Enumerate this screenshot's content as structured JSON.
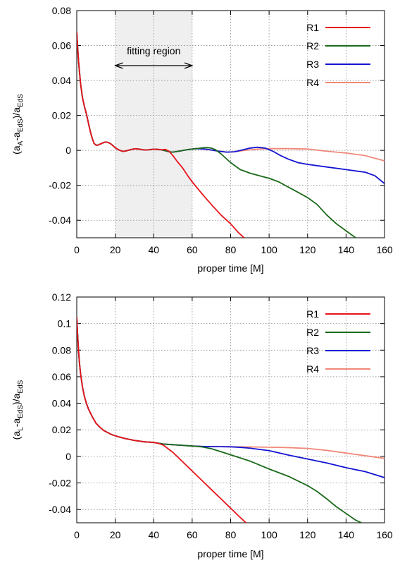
{
  "colors": {
    "R1": "#e8141b",
    "R2": "#1b6a1b",
    "R3": "#1414d2",
    "R4": "#f08878",
    "fitting_region": "#efefef",
    "grid": "#888888"
  },
  "chart_data": [
    {
      "type": "line",
      "xlabel": "proper time [M]",
      "ylabel": {
        "main": "(a",
        "sub1": "A",
        "mid": "-a",
        "sub2": "EdS",
        "close": ")/a",
        "sub3": "EdS"
      },
      "xlim": [
        0,
        160
      ],
      "ylim": [
        -0.05,
        0.08
      ],
      "xticks": [
        0,
        20,
        40,
        60,
        80,
        100,
        120,
        140,
        160
      ],
      "xtick_labels": [
        "0",
        "20",
        "40",
        "60",
        "80",
        "100",
        "120",
        "140",
        "160"
      ],
      "yticks": [
        -0.04,
        -0.02,
        0,
        0.02,
        0.04,
        0.06,
        0.08
      ],
      "ytick_labels": [
        "-0.04",
        "-0.02",
        "0",
        "0.02",
        "0.04",
        "0.06",
        "0.08"
      ],
      "grid": true,
      "legend_position": "top-right",
      "annotation": {
        "label": "fitting region",
        "x_range": [
          20,
          60
        ],
        "arrow_y": 0.0485,
        "label_y": 0.057
      },
      "series": [
        {
          "name": "R1",
          "x": [
            0,
            0.5,
            1,
            2,
            3,
            4,
            5,
            6,
            7,
            8,
            9,
            10,
            11,
            12,
            13,
            14,
            15,
            16,
            17,
            18,
            19,
            20,
            22,
            24,
            26,
            28,
            30,
            32,
            34,
            36,
            38,
            40,
            42,
            44,
            46,
            48,
            50,
            52,
            55,
            58,
            60,
            63,
            66,
            70,
            75,
            80,
            84,
            87
          ],
          "y": [
            0.068,
            0.058,
            0.05,
            0.038,
            0.03,
            0.025,
            0.021,
            0.016,
            0.011,
            0.007,
            0.004,
            0.003,
            0.003,
            0.0035,
            0.004,
            0.0045,
            0.0048,
            0.0046,
            0.0042,
            0.0035,
            0.0025,
            0.0015,
            0.0002,
            -0.0006,
            -0.0002,
            0.0004,
            0.0009,
            0.0008,
            0.0004,
            0.0002,
            0.0004,
            0.0007,
            0.0006,
            0.0003,
            0.0006,
            -0.0005,
            -0.003,
            -0.006,
            -0.01,
            -0.015,
            -0.018,
            -0.022,
            -0.026,
            -0.031,
            -0.037,
            -0.042,
            -0.047,
            -0.05
          ]
        },
        {
          "name": "R2",
          "x": [
            0,
            0.5,
            1,
            2,
            3,
            4,
            5,
            6,
            7,
            8,
            9,
            10,
            11,
            12,
            13,
            14,
            15,
            16,
            17,
            18,
            19,
            20,
            22,
            24,
            26,
            28,
            30,
            32,
            34,
            36,
            38,
            40,
            42,
            44,
            46,
            48,
            50,
            54,
            58,
            62,
            66,
            68,
            70,
            72,
            75,
            80,
            85,
            90,
            95,
            100,
            105,
            110,
            115,
            120,
            125,
            130,
            135,
            140,
            145
          ],
          "y": [
            0.068,
            0.058,
            0.05,
            0.038,
            0.03,
            0.025,
            0.021,
            0.016,
            0.011,
            0.007,
            0.004,
            0.003,
            0.003,
            0.0035,
            0.004,
            0.0045,
            0.0048,
            0.0046,
            0.0042,
            0.0035,
            0.0025,
            0.0015,
            0.0002,
            -0.0006,
            -0.0002,
            0.0004,
            0.0009,
            0.0008,
            0.0004,
            0.0002,
            0.0004,
            0.0007,
            0.0006,
            0.0003,
            -0.0002,
            -0.0008,
            -0.001,
            -0.0003,
            0.0005,
            0.001,
            0.0015,
            0.0016,
            0.0013,
            0.0005,
            -0.002,
            -0.007,
            -0.011,
            -0.013,
            -0.0145,
            -0.016,
            -0.018,
            -0.021,
            -0.024,
            -0.027,
            -0.031,
            -0.037,
            -0.042,
            -0.046,
            -0.05
          ]
        },
        {
          "name": "R3",
          "x": [
            0,
            0.5,
            1,
            2,
            3,
            4,
            5,
            6,
            7,
            8,
            9,
            10,
            11,
            12,
            13,
            14,
            15,
            16,
            17,
            18,
            19,
            20,
            22,
            24,
            26,
            28,
            30,
            32,
            34,
            36,
            38,
            40,
            42,
            44,
            46,
            48,
            50,
            54,
            58,
            62,
            66,
            70,
            74,
            78,
            82,
            86,
            90,
            94,
            98,
            102,
            106,
            110,
            115,
            120,
            130,
            140,
            150,
            155,
            160
          ],
          "y": [
            0.068,
            0.058,
            0.05,
            0.038,
            0.03,
            0.025,
            0.021,
            0.016,
            0.011,
            0.007,
            0.004,
            0.003,
            0.003,
            0.0035,
            0.004,
            0.0045,
            0.0048,
            0.0046,
            0.0042,
            0.0035,
            0.0025,
            0.0015,
            0.0002,
            -0.0006,
            -0.0002,
            0.0004,
            0.0009,
            0.0008,
            0.0004,
            0.0002,
            0.0004,
            0.0007,
            0.0006,
            0.0003,
            -0.0002,
            -0.0008,
            -0.001,
            -0.0003,
            0.0005,
            0.001,
            0.0008,
            0.0002,
            -0.0005,
            -0.001,
            -0.0008,
            0.0002,
            0.0013,
            0.0018,
            0.0013,
            -0.0005,
            -0.003,
            -0.005,
            -0.007,
            -0.008,
            -0.0095,
            -0.011,
            -0.0125,
            -0.0145,
            -0.019
          ]
        },
        {
          "name": "R4",
          "x": [
            0,
            0.5,
            1,
            2,
            3,
            4,
            5,
            6,
            7,
            8,
            9,
            10,
            11,
            12,
            13,
            14,
            15,
            16,
            17,
            18,
            19,
            20,
            22,
            24,
            26,
            28,
            30,
            32,
            34,
            36,
            38,
            40,
            42,
            44,
            46,
            48,
            50,
            54,
            58,
            62,
            66,
            70,
            74,
            78,
            82,
            86,
            90,
            95,
            100,
            110,
            120,
            130,
            140,
            150,
            160
          ],
          "y": [
            0.068,
            0.058,
            0.05,
            0.038,
            0.03,
            0.025,
            0.021,
            0.016,
            0.011,
            0.007,
            0.004,
            0.003,
            0.003,
            0.0035,
            0.004,
            0.0045,
            0.0048,
            0.0046,
            0.0042,
            0.0035,
            0.0025,
            0.0015,
            0.0002,
            -0.0006,
            -0.0002,
            0.0004,
            0.0009,
            0.0008,
            0.0004,
            0.0002,
            0.0004,
            0.0007,
            0.0006,
            0.0003,
            -0.0002,
            -0.0008,
            -0.001,
            -0.0003,
            0.0005,
            0.001,
            0.0008,
            0.0002,
            -0.0005,
            -0.001,
            -0.0008,
            -0.0002,
            0.0003,
            0.0008,
            0.001,
            0.001,
            0.0008,
            -0.0005,
            -0.0015,
            -0.003,
            -0.006
          ]
        }
      ]
    },
    {
      "type": "line",
      "xlabel": "proper time [M]",
      "ylabel": {
        "main": "(a",
        "sub1": "L",
        "mid": "-a",
        "sub2": "EdS",
        "close": ")/a",
        "sub3": "EdS"
      },
      "xlim": [
        0,
        160
      ],
      "ylim": [
        -0.05,
        0.12
      ],
      "xticks": [
        0,
        20,
        40,
        60,
        80,
        100,
        120,
        140,
        160
      ],
      "xtick_labels": [
        "0",
        "20",
        "40",
        "60",
        "80",
        "100",
        "120",
        "140",
        "160"
      ],
      "yticks": [
        -0.04,
        -0.02,
        0,
        0.02,
        0.04,
        0.06,
        0.08,
        0.1,
        0.12
      ],
      "ytick_labels": [
        "-0.04",
        "-0.02",
        "0",
        "0.02",
        "0.04",
        "0.06",
        "0.08",
        "0.1",
        "0.12"
      ],
      "grid": true,
      "legend_position": "top-right",
      "series": [
        {
          "name": "R1",
          "x": [
            0,
            0.5,
            1,
            1.5,
            2,
            3,
            4,
            5,
            6,
            7,
            8,
            10,
            12,
            14,
            16,
            18,
            20,
            25,
            30,
            35,
            40,
            42,
            45,
            50,
            55,
            60,
            65,
            70,
            75,
            80,
            85,
            88
          ],
          "y": [
            0.105,
            0.09,
            0.078,
            0.069,
            0.062,
            0.052,
            0.045,
            0.04,
            0.036,
            0.033,
            0.03,
            0.025,
            0.022,
            0.0195,
            0.018,
            0.0165,
            0.0155,
            0.0135,
            0.012,
            0.011,
            0.0105,
            0.01,
            0.0085,
            0.003,
            -0.004,
            -0.011,
            -0.018,
            -0.025,
            -0.032,
            -0.039,
            -0.046,
            -0.05
          ]
        },
        {
          "name": "R2",
          "x": [
            0,
            0.5,
            1,
            1.5,
            2,
            3,
            4,
            5,
            6,
            7,
            8,
            10,
            12,
            14,
            16,
            18,
            20,
            25,
            30,
            35,
            40,
            45,
            50,
            55,
            60,
            65,
            70,
            75,
            80,
            90,
            100,
            110,
            120,
            125,
            130,
            135,
            140,
            145,
            148
          ],
          "y": [
            0.105,
            0.09,
            0.078,
            0.069,
            0.062,
            0.052,
            0.045,
            0.04,
            0.036,
            0.033,
            0.03,
            0.025,
            0.022,
            0.0195,
            0.018,
            0.0165,
            0.0155,
            0.0135,
            0.012,
            0.011,
            0.0105,
            0.0093,
            0.0088,
            0.0083,
            0.0078,
            0.0072,
            0.0058,
            0.0035,
            0.0012,
            -0.0035,
            -0.0095,
            -0.015,
            -0.022,
            -0.0265,
            -0.032,
            -0.038,
            -0.043,
            -0.048,
            -0.05
          ]
        },
        {
          "name": "R3",
          "x": [
            0,
            0.5,
            1,
            1.5,
            2,
            3,
            4,
            5,
            6,
            7,
            8,
            10,
            12,
            14,
            16,
            18,
            20,
            25,
            30,
            35,
            40,
            45,
            50,
            55,
            60,
            65,
            70,
            75,
            80,
            85,
            90,
            100,
            110,
            120,
            130,
            140,
            150,
            160
          ],
          "y": [
            0.105,
            0.09,
            0.078,
            0.069,
            0.062,
            0.052,
            0.045,
            0.04,
            0.036,
            0.033,
            0.03,
            0.025,
            0.022,
            0.0195,
            0.018,
            0.0165,
            0.0155,
            0.0135,
            0.012,
            0.011,
            0.0105,
            0.0093,
            0.0088,
            0.0083,
            0.0078,
            0.0075,
            0.0073,
            0.0073,
            0.0072,
            0.0068,
            0.0062,
            0.0043,
            0.001,
            -0.002,
            -0.005,
            -0.0085,
            -0.0115,
            -0.016
          ]
        },
        {
          "name": "R4",
          "x": [
            0,
            0.5,
            1,
            1.5,
            2,
            3,
            4,
            5,
            6,
            7,
            8,
            10,
            12,
            14,
            16,
            18,
            20,
            25,
            30,
            35,
            40,
            45,
            50,
            55,
            60,
            65,
            70,
            75,
            80,
            90,
            100,
            110,
            120,
            130,
            140,
            150,
            160
          ],
          "y": [
            0.105,
            0.09,
            0.078,
            0.069,
            0.062,
            0.052,
            0.045,
            0.04,
            0.036,
            0.033,
            0.03,
            0.025,
            0.022,
            0.0195,
            0.018,
            0.0165,
            0.0155,
            0.0135,
            0.012,
            0.011,
            0.0105,
            0.0093,
            0.0088,
            0.0083,
            0.0078,
            0.0075,
            0.0074,
            0.0073,
            0.0072,
            0.0071,
            0.0069,
            0.0066,
            0.006,
            0.0045,
            0.0025,
            0.0005,
            -0.0015
          ]
        }
      ]
    }
  ]
}
